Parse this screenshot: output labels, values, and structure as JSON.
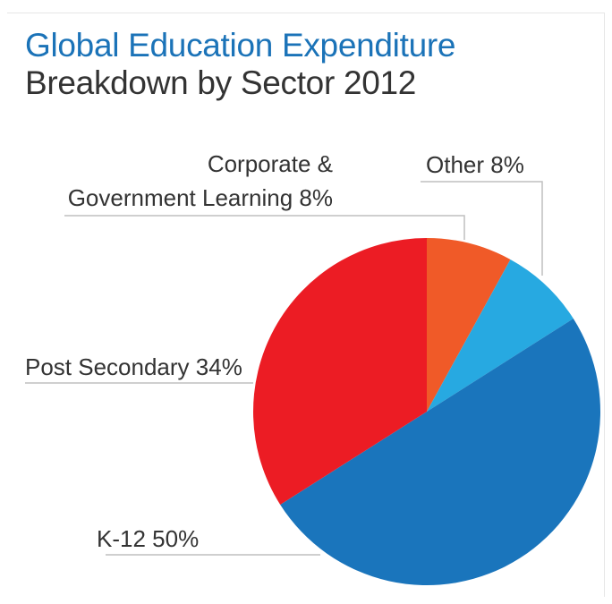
{
  "chart_data": {
    "type": "pie",
    "title": "Global Education Expenditure",
    "subtitle": "Breakdown by Sector 2012",
    "slices": [
      {
        "label": "Corporate & Government Learning 8%",
        "label_lines": [
          "Corporate &",
          "Government Learning 8%"
        ],
        "value": 8,
        "color": "#f05a28"
      },
      {
        "label": "Other 8%",
        "label_lines": [
          "Other 8%"
        ],
        "value": 8,
        "color": "#27a9e1"
      },
      {
        "label": "K-12 50%",
        "label_lines": [
          "K-12 50%"
        ],
        "value": 50,
        "color": "#1a75bc"
      },
      {
        "label": "Post Secondary 34%",
        "label_lines": [
          "Post Secondary 34%"
        ],
        "value": 34,
        "color": "#ec1c24"
      }
    ]
  }
}
